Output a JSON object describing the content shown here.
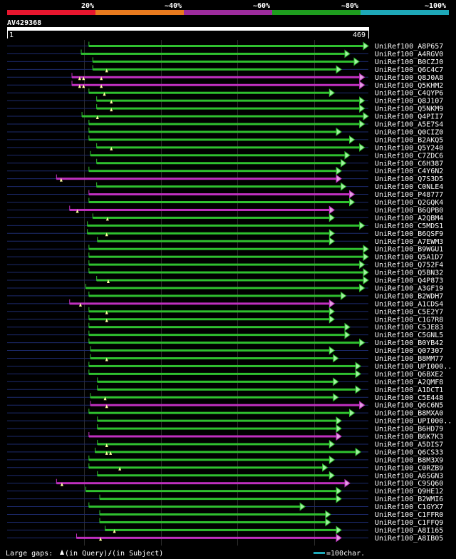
{
  "query": {
    "id": "AV429368",
    "start_label": "1",
    "end_label": "469",
    "length": 469
  },
  "scale": {
    "labels": [
      "20%",
      "~40%",
      "~60%",
      "~80%",
      "~100%"
    ],
    "colors": [
      "#e8162e",
      "#e87a1e",
      "#9c2b9c",
      "#1e9c1e",
      "#1ea8b8"
    ]
  },
  "colors": {
    "green": "#2fc02f",
    "magenta": "#c030c0",
    "green_head": "#a0f0a0",
    "magenta_head": "#e0a0e0",
    "thin_line": "#1c2a6c",
    "grid": "#2a2a2a",
    "gap_marker": "#ffffa0"
  },
  "hits": [
    {
      "name": "UniRef100_A8P657",
      "start": 107,
      "end": 469,
      "color": "green",
      "gaps": []
    },
    {
      "name": "UniRef100_A4RGV0",
      "start": 97,
      "end": 445,
      "color": "green",
      "gaps": []
    },
    {
      "name": "UniRef100_B0CZJ0",
      "start": 112,
      "end": 457,
      "color": "green",
      "gaps": []
    },
    {
      "name": "UniRef100_Q6C4C7",
      "start": 112,
      "end": 434,
      "color": "green",
      "gaps": [
        130
      ]
    },
    {
      "name": "UniRef100_Q8J0A8",
      "start": 85,
      "end": 464,
      "color": "magenta",
      "gaps": [
        95,
        100,
        123
      ]
    },
    {
      "name": "UniRef100_Q5KHM2",
      "start": 85,
      "end": 464,
      "color": "magenta",
      "gaps": [
        95,
        100,
        123
      ]
    },
    {
      "name": "UniRef100_C4QYP6",
      "start": 107,
      "end": 425,
      "color": "green",
      "gaps": [
        127
      ]
    },
    {
      "name": "UniRef100_Q8J107",
      "start": 117,
      "end": 464,
      "color": "green",
      "gaps": [
        136
      ]
    },
    {
      "name": "UniRef100_Q5NKM9",
      "start": 117,
      "end": 464,
      "color": "green",
      "gaps": [
        136
      ]
    },
    {
      "name": "UniRef100_Q4PII7",
      "start": 98,
      "end": 469,
      "color": "green",
      "gaps": [
        118
      ]
    },
    {
      "name": "UniRef100_A5E7S4",
      "start": 107,
      "end": 464,
      "color": "green",
      "gaps": []
    },
    {
      "name": "UniRef100_Q0CIZ0",
      "start": 107,
      "end": 434,
      "color": "green",
      "gaps": []
    },
    {
      "name": "UniRef100_B2AKQ5",
      "start": 107,
      "end": 451,
      "color": "green",
      "gaps": []
    },
    {
      "name": "UniRef100_Q5Y240",
      "start": 117,
      "end": 464,
      "color": "green",
      "gaps": [
        136
      ]
    },
    {
      "name": "UniRef100_C7ZDC6",
      "start": 109,
      "end": 445,
      "color": "green",
      "gaps": []
    },
    {
      "name": "UniRef100_C6H387",
      "start": 117,
      "end": 440,
      "color": "green",
      "gaps": []
    },
    {
      "name": "UniRef100_C4Y6N2",
      "start": 107,
      "end": 434,
      "color": "green",
      "gaps": []
    },
    {
      "name": "UniRef100_Q7S3D5",
      "start": 65,
      "end": 434,
      "color": "magenta",
      "gaps": [
        71
      ]
    },
    {
      "name": "UniRef100_C0NLE4",
      "start": 117,
      "end": 440,
      "color": "green",
      "gaps": []
    },
    {
      "name": "UniRef100_P48777",
      "start": 107,
      "end": 451,
      "color": "magenta",
      "gaps": []
    },
    {
      "name": "UniRef100_Q2GQK4",
      "start": 107,
      "end": 451,
      "color": "green",
      "gaps": []
    },
    {
      "name": "UniRef100_B6QPB0",
      "start": 82,
      "end": 425,
      "color": "magenta",
      "gaps": [
        92
      ]
    },
    {
      "name": "UniRef100_A2QBM4",
      "start": 112,
      "end": 425,
      "color": "green",
      "gaps": [
        131
      ]
    },
    {
      "name": "UniRef100_C5MDS1",
      "start": 105,
      "end": 464,
      "color": "green",
      "gaps": []
    },
    {
      "name": "UniRef100_B6QSF9",
      "start": 105,
      "end": 425,
      "color": "green",
      "gaps": [
        130
      ]
    },
    {
      "name": "UniRef100_A7EWM3",
      "start": 118,
      "end": 425,
      "color": "green",
      "gaps": []
    },
    {
      "name": "UniRef100_B9WGU1",
      "start": 107,
      "end": 469,
      "color": "green",
      "gaps": []
    },
    {
      "name": "UniRef100_Q5A1D7",
      "start": 107,
      "end": 469,
      "color": "green",
      "gaps": []
    },
    {
      "name": "UniRef100_Q752F4",
      "start": 107,
      "end": 464,
      "color": "green",
      "gaps": []
    },
    {
      "name": "UniRef100_Q5BN32",
      "start": 107,
      "end": 469,
      "color": "green",
      "gaps": []
    },
    {
      "name": "UniRef100_Q4P873",
      "start": 117,
      "end": 469,
      "color": "green",
      "gaps": [
        132
      ]
    },
    {
      "name": "UniRef100_A3GF19",
      "start": 103,
      "end": 464,
      "color": "green",
      "gaps": []
    },
    {
      "name": "UniRef100_B2WDH7",
      "start": 107,
      "end": 440,
      "color": "green",
      "gaps": []
    },
    {
      "name": "UniRef100_A1CDS4",
      "start": 82,
      "end": 425,
      "color": "magenta",
      "gaps": [
        96
      ]
    },
    {
      "name": "UniRef100_C5E2Y7",
      "start": 107,
      "end": 425,
      "color": "green",
      "gaps": [
        130
      ]
    },
    {
      "name": "UniRef100_C1G7R8",
      "start": 107,
      "end": 425,
      "color": "green",
      "gaps": [
        130
      ]
    },
    {
      "name": "UniRef100_C5JE83",
      "start": 107,
      "end": 445,
      "color": "green",
      "gaps": []
    },
    {
      "name": "UniRef100_C5GNL5",
      "start": 107,
      "end": 445,
      "color": "green",
      "gaps": []
    },
    {
      "name": "UniRef100_B0YB42",
      "start": 107,
      "end": 464,
      "color": "green",
      "gaps": []
    },
    {
      "name": "UniRef100_Q07307",
      "start": 109,
      "end": 425,
      "color": "green",
      "gaps": []
    },
    {
      "name": "UniRef100_B8MM77",
      "start": 109,
      "end": 430,
      "color": "green",
      "gaps": [
        130
      ]
    },
    {
      "name": "UniRef100_UPI000..",
      "start": 107,
      "end": 459,
      "color": "green",
      "gaps": []
    },
    {
      "name": "UniRef100_Q6BXE2",
      "start": 107,
      "end": 459,
      "color": "green",
      "gaps": []
    },
    {
      "name": "UniRef100_A2QMF8",
      "start": 118,
      "end": 430,
      "color": "green",
      "gaps": []
    },
    {
      "name": "UniRef100_A1DCT1",
      "start": 118,
      "end": 459,
      "color": "green",
      "gaps": []
    },
    {
      "name": "UniRef100_C5E448",
      "start": 109,
      "end": 430,
      "color": "green",
      "gaps": [
        128
      ]
    },
    {
      "name": "UniRef100_Q6C6N5",
      "start": 109,
      "end": 464,
      "color": "magenta",
      "gaps": [
        130
      ]
    },
    {
      "name": "UniRef100_B8MXA0",
      "start": 107,
      "end": 451,
      "color": "green",
      "gaps": []
    },
    {
      "name": "UniRef100_UPI000..",
      "start": 118,
      "end": 434,
      "color": "green",
      "gaps": []
    },
    {
      "name": "UniRef100_B6HD79",
      "start": 118,
      "end": 434,
      "color": "green",
      "gaps": []
    },
    {
      "name": "UniRef100_B6K7K3",
      "start": 107,
      "end": 434,
      "color": "magenta",
      "gaps": []
    },
    {
      "name": "UniRef100_A5DIS7",
      "start": 118,
      "end": 425,
      "color": "green",
      "gaps": [
        130
      ]
    },
    {
      "name": "UniRef100_Q6CS33",
      "start": 115,
      "end": 459,
      "color": "green",
      "gaps": [
        130,
        135
      ]
    },
    {
      "name": "UniRef100_B8M3X9",
      "start": 107,
      "end": 425,
      "color": "green",
      "gaps": []
    },
    {
      "name": "UniRef100_C0RZB9",
      "start": 107,
      "end": 416,
      "color": "green",
      "gaps": [
        147
      ]
    },
    {
      "name": "UniRef100_A6SGN3",
      "start": 118,
      "end": 425,
      "color": "green",
      "gaps": []
    },
    {
      "name": "UniRef100_C9SQ60",
      "start": 65,
      "end": 445,
      "color": "magenta",
      "gaps": [
        72
      ]
    },
    {
      "name": "UniRef100_Q9HE12",
      "start": 103,
      "end": 434,
      "color": "green",
      "gaps": []
    },
    {
      "name": "UniRef100_B2WMI6",
      "start": 121,
      "end": 434,
      "color": "green",
      "gaps": []
    },
    {
      "name": "UniRef100_C1GYX7",
      "start": 107,
      "end": 387,
      "color": "green",
      "gaps": []
    },
    {
      "name": "UniRef100_C1FFR0",
      "start": 121,
      "end": 420,
      "color": "green",
      "gaps": []
    },
    {
      "name": "UniRef100_C1FFQ9",
      "start": 121,
      "end": 420,
      "color": "green",
      "gaps": []
    },
    {
      "name": "UniRef100_A8I165",
      "start": 128,
      "end": 434,
      "color": "green",
      "gaps": [
        140
      ]
    },
    {
      "name": "UniRef100_A8IB05",
      "start": 91,
      "end": 434,
      "color": "magenta",
      "gaps": [
        122
      ]
    }
  ],
  "legend": {
    "large_gaps_label": "Large gaps:",
    "in_query_label": "(in Query)/",
    "dash_label": "-",
    "in_subject_label": " (in Subject)",
    "scale_label": "=100char."
  }
}
